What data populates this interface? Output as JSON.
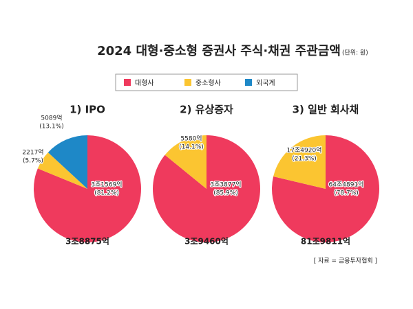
{
  "title": "2024 대형·중소형 증권사 주식·채권 주관금액",
  "subtitle": "(단위: 원)",
  "source": "[ 자료 = 금융투자협회 ]",
  "chart_data": [
    {
      "type": "pie",
      "title": "1) IPO",
      "categories": [
        "대형사",
        "중소형사",
        "외국계"
      ],
      "colors": [
        "#ef3a5d",
        "#fbc531",
        "#1e88c7"
      ],
      "values": [
        81.2,
        5.7,
        13.1
      ],
      "value_labels": [
        "(81.2%)",
        "(5.7%)",
        "(13.1%)"
      ],
      "amount_labels": [
        "3조1569억",
        "2217억",
        "5089억"
      ],
      "total_label": "3조8875억"
    },
    {
      "type": "pie",
      "title": "2) 유상증자",
      "categories": [
        "대형사",
        "중소형사"
      ],
      "colors": [
        "#ef3a5d",
        "#fbc531"
      ],
      "values": [
        85.9,
        14.1
      ],
      "value_labels": [
        "(85.9%)",
        "(14.1%)"
      ],
      "amount_labels": [
        "3조3877억",
        "5580억"
      ],
      "total_label": "3조9460억"
    },
    {
      "type": "pie",
      "title": "3) 일반 회사채",
      "categories": [
        "대형사",
        "중소형사"
      ],
      "colors": [
        "#ef3a5d",
        "#fbc531"
      ],
      "values": [
        78.7,
        21.3
      ],
      "value_labels": [
        "(78.7%)",
        "(21.3%)"
      ],
      "amount_labels": [
        "64조4891억",
        "17조4920억"
      ],
      "total_label": "81조9811억"
    }
  ]
}
